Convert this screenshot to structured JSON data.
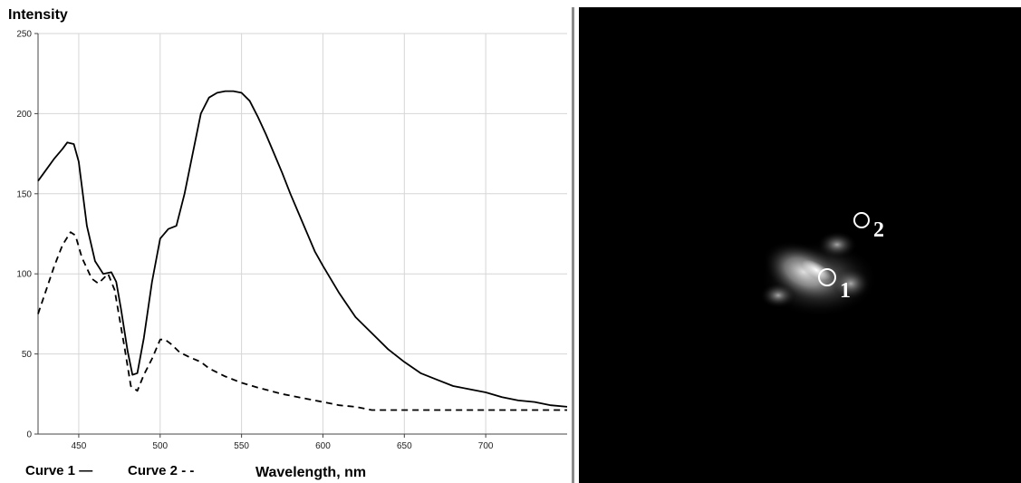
{
  "chart_data": {
    "type": "line",
    "ylabel": "Intensity",
    "xlabel": "Wavelength, nm",
    "xlim": [
      425,
      750
    ],
    "ylim": [
      0,
      250
    ],
    "xticks": [
      450,
      500,
      550,
      600,
      650,
      700
    ],
    "yticks": [
      0,
      50,
      100,
      150,
      200,
      250
    ],
    "grid": true,
    "legend_placement": "bottom-left",
    "series": [
      {
        "name": "Curve 1",
        "style": "solid",
        "color": "#000000",
        "x": [
          425,
          430,
          435,
          440,
          443,
          447,
          450,
          455,
          460,
          465,
          470,
          473,
          476,
          480,
          483,
          486,
          490,
          495,
          500,
          505,
          510,
          515,
          520,
          525,
          530,
          535,
          540,
          545,
          550,
          555,
          560,
          565,
          570,
          575,
          580,
          585,
          590,
          595,
          600,
          610,
          620,
          630,
          640,
          650,
          660,
          670,
          680,
          690,
          700,
          710,
          720,
          730,
          740,
          750
        ],
        "y": [
          158,
          165,
          172,
          178,
          182,
          181,
          170,
          130,
          108,
          100,
          101,
          95,
          78,
          52,
          37,
          38,
          60,
          95,
          122,
          128,
          130,
          150,
          175,
          200,
          210,
          213,
          214,
          214,
          213,
          208,
          198,
          187,
          175,
          163,
          150,
          138,
          126,
          114,
          105,
          88,
          73,
          63,
          53,
          45,
          38,
          34,
          30,
          28,
          26,
          23,
          21,
          20,
          18,
          17
        ]
      },
      {
        "name": "Curve 2",
        "style": "dashed",
        "color": "#000000",
        "x": [
          425,
          430,
          435,
          440,
          445,
          448,
          452,
          458,
          462,
          468,
          472,
          478,
          482,
          486,
          490,
          495,
          500,
          503,
          507,
          512,
          518,
          525,
          530,
          540,
          550,
          560,
          575,
          590,
          600,
          610,
          620,
          630,
          640,
          660,
          700,
          750
        ],
        "y": [
          75,
          90,
          105,
          118,
          126,
          124,
          110,
          97,
          94,
          100,
          90,
          55,
          30,
          27,
          37,
          47,
          59,
          59,
          56,
          51,
          48,
          45,
          41,
          36,
          32,
          29,
          25,
          22,
          20,
          18,
          17,
          15,
          15,
          15,
          15,
          15
        ]
      }
    ]
  },
  "legend": {
    "curve1": "Curve 1 —",
    "curve2": "Curve 2 - -"
  },
  "image_panel": {
    "background": "#000000",
    "markers": [
      {
        "label": "1"
      },
      {
        "label": "2"
      }
    ]
  }
}
